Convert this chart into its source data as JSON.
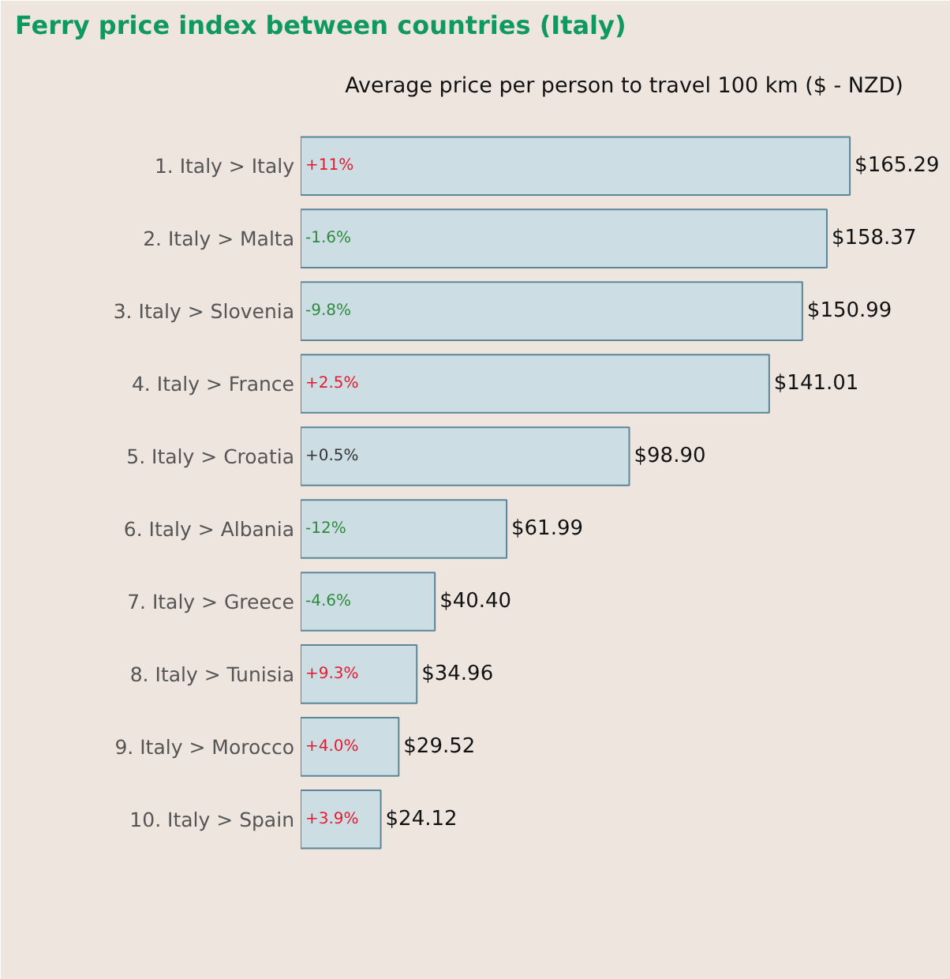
{
  "chart_data": {
    "type": "bar",
    "orientation": "horizontal",
    "title": "Ferry price index between countries (Italy)",
    "subtitle": "Average price per person to travel 100 km ($ - NZD)",
    "categories": [
      "1. Italy > Italy",
      "2. Italy > Malta",
      "3. Italy > Slovenia",
      "4. Italy > France",
      "5. Italy > Croatia",
      "6. Italy > Albania",
      "7. Italy > Greece",
      "8. Italy > Tunisia",
      "9. Italy > Morocco",
      "10. Italy > Spain"
    ],
    "values": [
      165.29,
      158.37,
      150.99,
      141.01,
      98.9,
      61.99,
      40.4,
      34.96,
      29.52,
      24.12
    ],
    "color": "#ccdde3",
    "value_labels": [
      "$165.29",
      "$158.37",
      "$150.99",
      "$141.01",
      "$98.90",
      "$61.99",
      "$40.40",
      "$34.96",
      "$29.52",
      "$24.12"
    ],
    "annotations": [
      {
        "text": "+11%",
        "y": "1. Italy > Italy"
      },
      {
        "text": "-1.6%",
        "y": "2. Italy > Malta"
      },
      {
        "text": "-9.8%",
        "y": "3. Italy > Slovenia"
      },
      {
        "text": "+2.5%",
        "y": "4. Italy > France"
      },
      {
        "text": "+0.5%",
        "y": "5. Italy > Croatia"
      },
      {
        "text": "-12%",
        "y": "6. Italy > Albania"
      },
      {
        "text": "-4.6%",
        "y": "7. Italy > Greece"
      },
      {
        "text": "+9.3%",
        "y": "8. Italy > Tunisia"
      },
      {
        "text": "+4.0%",
        "y": "9. Italy > Morocco"
      },
      {
        "text": "+3.9%",
        "y": "10. Italy > Spain"
      }
    ],
    "tick_labels": "y",
    "grid": false
  }
}
